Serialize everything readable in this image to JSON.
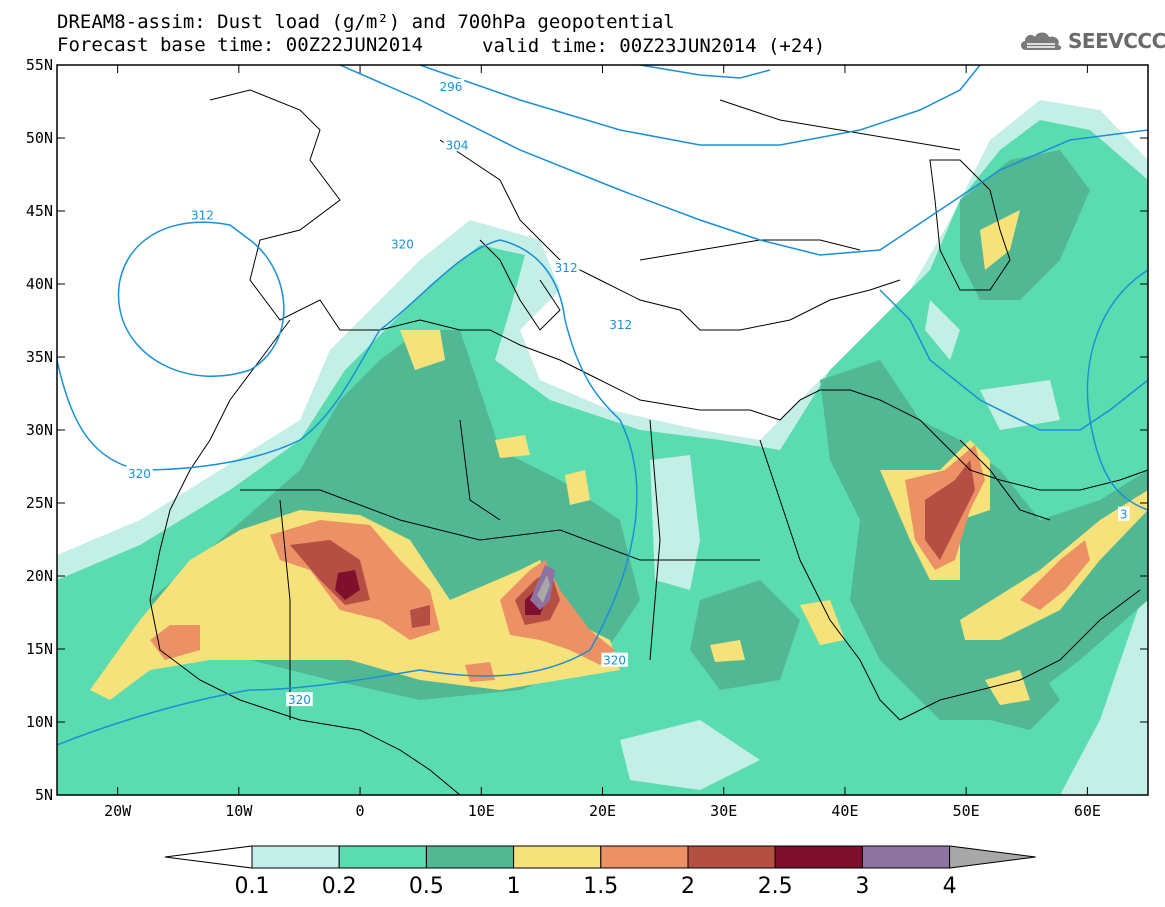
{
  "header": {
    "title_line1": "DREAM8-assim: Dust load (g/m²) and 700hPa geopotential",
    "title_line2": "Forecast base time: 00Z22JUN2014",
    "valid_time": "valid time: 00Z23JUN2014 (+24)"
  },
  "logo": {
    "text": "SEEVCCC",
    "icon": "cloud-icon"
  },
  "map": {
    "lon_range": [
      -25,
      65
    ],
    "lat_range": [
      5,
      55
    ],
    "lat_ticks": [
      {
        "value": 55,
        "label": "55N"
      },
      {
        "value": 50,
        "label": "50N"
      },
      {
        "value": 45,
        "label": "45N"
      },
      {
        "value": 40,
        "label": "40N"
      },
      {
        "value": 35,
        "label": "35N"
      },
      {
        "value": 30,
        "label": "30N"
      },
      {
        "value": 25,
        "label": "25N"
      },
      {
        "value": 20,
        "label": "20N"
      },
      {
        "value": 15,
        "label": "15N"
      },
      {
        "value": 10,
        "label": "10N"
      },
      {
        "value": 5,
        "label": "5N"
      }
    ],
    "lon_ticks": [
      {
        "value": -20,
        "label": "20W"
      },
      {
        "value": -10,
        "label": "10W"
      },
      {
        "value": 0,
        "label": "0"
      },
      {
        "value": 10,
        "label": "10E"
      },
      {
        "value": 20,
        "label": "20E"
      },
      {
        "value": 30,
        "label": "30E"
      },
      {
        "value": 40,
        "label": "40E"
      },
      {
        "value": 50,
        "label": "50E"
      },
      {
        "value": 60,
        "label": "60E"
      }
    ],
    "contour_labels": [
      {
        "text": "296",
        "lon": 7.5,
        "lat": 53.5
      },
      {
        "text": "304",
        "lon": 8.0,
        "lat": 49.5
      },
      {
        "text": "312",
        "lon": -13.0,
        "lat": 44.7
      },
      {
        "text": "312",
        "lon": 17.0,
        "lat": 41.1
      },
      {
        "text": "320",
        "lon": 3.5,
        "lat": 42.7
      },
      {
        "text": "312",
        "lon": 21.5,
        "lat": 37.2
      },
      {
        "text": "320",
        "lon": -18.2,
        "lat": 27.0
      },
      {
        "text": "320",
        "lon": -5.0,
        "lat": 11.5
      },
      {
        "text": "320",
        "lon": 21.0,
        "lat": 14.2
      },
      {
        "text": "3",
        "lon": 63.0,
        "lat": 24.2
      }
    ]
  },
  "colorbar": {
    "colors": [
      "#c4efe7",
      "#5adcb0",
      "#52b894",
      "#f6e27a",
      "#ec9066",
      "#b64f43",
      "#7f0f2c",
      "#8e73a0",
      "#a8a8a8"
    ],
    "labels": [
      "0.1",
      "0.2",
      "0.5",
      "1",
      "1.5",
      "2",
      "2.5",
      "3",
      "4"
    ],
    "under_color": "#ffffff"
  }
}
